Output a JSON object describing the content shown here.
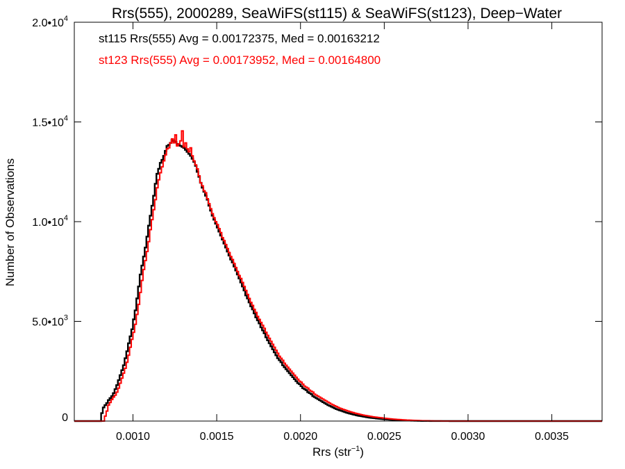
{
  "chart_data": {
    "type": "line",
    "title": "Rrs(555), 2000289, SeaWiFS(st115) & SeaWiFS(st123), Deep−Water",
    "xlabel": "Rrs (str",
    "xlabel_sup": "−1",
    "xlabel_end": ")",
    "ylabel": "Number of Observations",
    "xlim": [
      0.00065,
      0.0038
    ],
    "ylim": [
      0,
      20000
    ],
    "x_ticks": [
      0.001,
      0.0015,
      0.002,
      0.0025,
      0.003,
      0.0035
    ],
    "x_tick_labels": [
      "0.0010",
      "0.0015",
      "0.0020",
      "0.0025",
      "0.0030",
      "0.0035"
    ],
    "y_ticks": [
      {
        "value": 0,
        "label": "0",
        "exp": ""
      },
      {
        "value": 5000,
        "label": "5.0•10",
        "exp": "3"
      },
      {
        "value": 10000,
        "label": "1.0•10",
        "exp": "4"
      },
      {
        "value": 15000,
        "label": "1.5•10",
        "exp": "4"
      },
      {
        "value": 20000,
        "label": "2.0•10",
        "exp": "4"
      }
    ],
    "grid": false,
    "bin_width": 1e-05,
    "x_start": 0.00065,
    "series": [
      {
        "name": "st115",
        "color": "#000000",
        "stats_text": "st115 Rrs(555) Avg = 0.00172375, Med = 0.00163212",
        "values": [
          0,
          0,
          0,
          0,
          0,
          0,
          0,
          0,
          0,
          0,
          0,
          0,
          0,
          0,
          0,
          0,
          400,
          680,
          800,
          900,
          1050,
          1150,
          1250,
          1400,
          1600,
          1800,
          2050,
          2300,
          2550,
          2800,
          3150,
          3500,
          3900,
          4250,
          4600,
          5100,
          5550,
          6150,
          6750,
          7350,
          7800,
          8250,
          8700,
          9250,
          9800,
          10300,
          10800,
          11300,
          11900,
          12400,
          12650,
          12950,
          13100,
          13300,
          13550,
          13800,
          13850,
          13950,
          14100,
          14050,
          14000,
          13900,
          13850,
          13800,
          13750,
          13700,
          13600,
          13500,
          13400,
          13300,
          13150,
          13000,
          12800,
          12500,
          12250,
          11950,
          11700,
          11500,
          11300,
          11100,
          10800,
          10550,
          10300,
          10100,
          9900,
          9700,
          9500,
          9300,
          9100,
          8900,
          8700,
          8500,
          8300,
          8100,
          7950,
          7750,
          7550,
          7350,
          7150,
          6950,
          6750,
          6550,
          6300,
          6150,
          5950,
          5750,
          5600,
          5400,
          5200,
          5050,
          4900,
          4700,
          4550,
          4400,
          4200,
          4050,
          3900,
          3750,
          3600,
          3450,
          3300,
          3150,
          3050,
          2950,
          2800,
          2700,
          2600,
          2500,
          2400,
          2300,
          2200,
          2100,
          2000,
          1900,
          1850,
          1750,
          1650,
          1600,
          1550,
          1450,
          1400,
          1350,
          1250,
          1200,
          1150,
          1100,
          1050,
          1000,
          950,
          900,
          850,
          800,
          760,
          720,
          680,
          640,
          600,
          570,
          540,
          510,
          480,
          450,
          420,
          400,
          375,
          355,
          330,
          310,
          290,
          270,
          255,
          240,
          225,
          210,
          195,
          180,
          170,
          160,
          150,
          140,
          130,
          120,
          112,
          104,
          96,
          89,
          82,
          75,
          70,
          65,
          60,
          55,
          50,
          46,
          42,
          38,
          35,
          32,
          29,
          26,
          23,
          20,
          18,
          16,
          14,
          12,
          10,
          9,
          8,
          7,
          6,
          5,
          4,
          4,
          3,
          3,
          2,
          2,
          2,
          1,
          1,
          1,
          1,
          1,
          0,
          0,
          0,
          0,
          0,
          0,
          0,
          0,
          0,
          0,
          0,
          0,
          0,
          0,
          0,
          0,
          0,
          0,
          0,
          0,
          0,
          0,
          0,
          0,
          0,
          0,
          0,
          0,
          0,
          0,
          0,
          0,
          0,
          0,
          0,
          0,
          0,
          0,
          0,
          0,
          0,
          0,
          0,
          0,
          0,
          0,
          0,
          0,
          0,
          0,
          0,
          0,
          0,
          0,
          0,
          0,
          0,
          0,
          0,
          0,
          0,
          0,
          0,
          0,
          0,
          0,
          0,
          0,
          0,
          0,
          0,
          0,
          0,
          0,
          0,
          0,
          0,
          0,
          0,
          0,
          0,
          0,
          0,
          0,
          0,
          0,
          0,
          0,
          0,
          0,
          0,
          0,
          0,
          0,
          0,
          0,
          0,
          0,
          0,
          0,
          0,
          0,
          0
        ]
      },
      {
        "name": "st123",
        "color": "#ff0000",
        "stats_text": "st123 Rrs(555) Avg = 0.00173952, Med = 0.00164800",
        "values": [
          0,
          0,
          0,
          0,
          0,
          0,
          0,
          0,
          0,
          0,
          0,
          0,
          0,
          0,
          0,
          0,
          0,
          0,
          250,
          500,
          800,
          930,
          1080,
          1200,
          1300,
          1450,
          1650,
          1900,
          2150,
          2400,
          2650,
          2950,
          3300,
          3700,
          4100,
          4450,
          4850,
          5350,
          5850,
          6450,
          7050,
          7600,
          8050,
          8500,
          9000,
          9600,
          10100,
          10600,
          11100,
          11700,
          12100,
          12450,
          12750,
          13050,
          13350,
          13650,
          13700,
          13950,
          14150,
          13950,
          14350,
          13800,
          13900,
          14050,
          14550,
          13750,
          13950,
          13650,
          13500,
          13700,
          13300,
          13050,
          12850,
          12650,
          12300,
          11950,
          11800,
          11550,
          11450,
          11150,
          10900,
          10650,
          10400,
          10200,
          10000,
          9850,
          9650,
          9450,
          9200,
          9050,
          8850,
          8650,
          8450,
          8250,
          8100,
          7900,
          7700,
          7500,
          7300,
          7150,
          6950,
          6750,
          6550,
          6350,
          6150,
          5950,
          5800,
          5600,
          5450,
          5250,
          5100,
          4950,
          4800,
          4650,
          4450,
          4300,
          4150,
          4000,
          3850,
          3700,
          3550,
          3400,
          3250,
          3150,
          3050,
          2900,
          2800,
          2700,
          2600,
          2500,
          2400,
          2300,
          2200,
          2100,
          2000,
          1950,
          1850,
          1750,
          1700,
          1650,
          1550,
          1500,
          1450,
          1350,
          1300,
          1250,
          1200,
          1150,
          1100,
          1050,
          1000,
          950,
          900,
          850,
          810,
          770,
          730,
          690,
          650,
          620,
          590,
          560,
          530,
          500,
          475,
          450,
          425,
          400,
          380,
          360,
          340,
          320,
          300,
          285,
          270,
          255,
          240,
          225,
          210,
          200,
          190,
          180,
          170,
          160,
          150,
          140,
          130,
          122,
          114,
          106,
          98,
          91,
          84,
          78,
          72,
          66,
          60,
          55,
          50,
          46,
          42,
          38,
          34,
          30,
          27,
          24,
          21,
          18,
          16,
          14,
          12,
          10,
          8,
          7,
          6,
          5,
          4,
          3,
          3,
          2,
          2,
          1,
          1,
          1,
          0,
          0,
          0,
          0,
          0,
          0,
          0,
          0,
          0,
          0,
          0,
          0,
          0,
          0,
          0,
          0,
          0,
          0,
          0,
          0,
          0,
          0,
          0,
          0,
          0,
          0,
          0,
          0,
          0,
          0,
          0,
          0,
          0,
          0,
          0,
          0,
          0,
          0,
          0,
          0,
          0,
          0,
          0,
          0,
          0,
          0,
          0,
          0,
          0,
          0,
          0,
          0,
          0,
          0,
          0,
          0,
          0,
          0,
          0,
          0,
          0,
          0,
          0,
          0,
          0,
          0,
          0,
          0,
          0,
          0,
          0,
          0,
          0,
          0,
          0,
          0,
          0,
          0,
          0,
          0,
          0,
          0,
          0,
          0,
          0,
          0,
          0,
          0,
          0,
          0,
          0,
          0
        ]
      }
    ]
  }
}
